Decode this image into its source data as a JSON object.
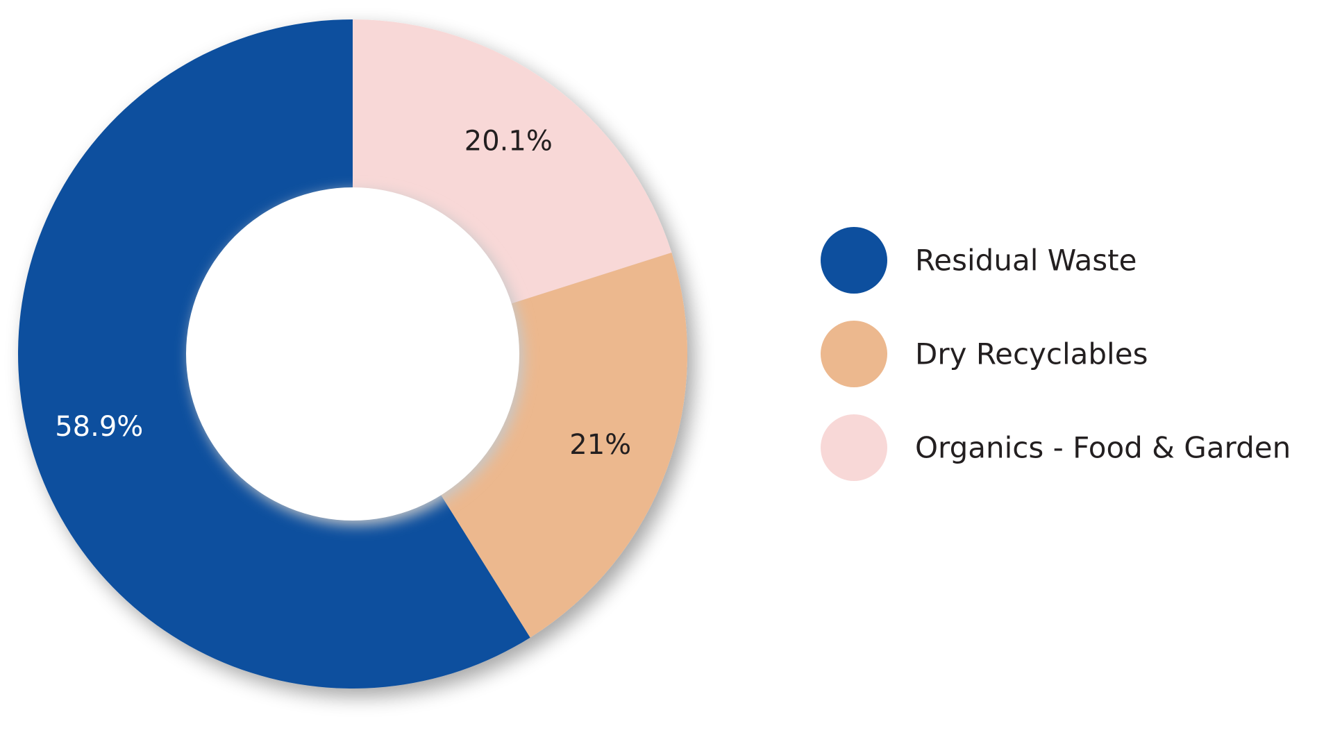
{
  "chart_data": {
    "type": "pie",
    "donut": true,
    "categories": [
      "Residual Waste",
      "Dry Recyclables",
      "Organics - Food & Garden"
    ],
    "values": [
      58.9,
      21,
      20.1
    ],
    "slice_labels": [
      "58.9%",
      "21%",
      "20.1%"
    ],
    "colors": [
      "#0d4f9e",
      "#ecb88e",
      "#f8d8d7"
    ],
    "label_colors": [
      "#ffffff",
      "#231f20",
      "#231f20"
    ],
    "start": "top",
    "direction": "counterclockwise",
    "legend": {
      "position": "right",
      "items": [
        {
          "label": "Residual Waste",
          "color": "#0d4f9e"
        },
        {
          "label": "Dry Recyclables",
          "color": "#ecb88e"
        },
        {
          "label": "Organics - Food & Garden",
          "color": "#f8d8d7"
        }
      ]
    }
  }
}
